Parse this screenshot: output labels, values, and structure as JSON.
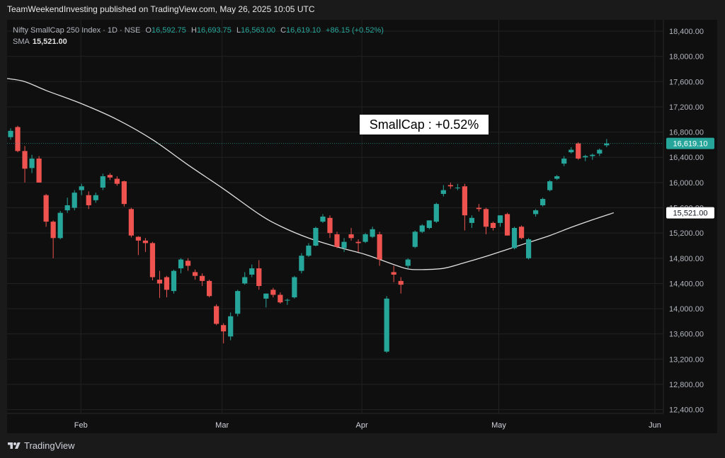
{
  "header": {
    "publisher": "TeamWeekendInvesting published on TradingView.com, May 26, 2025 10:05 UTC"
  },
  "legend": {
    "symbol": "Nifty SmallCap 250 Index · 1D · NSE",
    "o_label": "O",
    "o_value": "16,592.75",
    "h_label": "H",
    "h_value": "16,693.75",
    "l_label": "L",
    "l_value": "16,563.00",
    "c_label": "C",
    "c_value": "16,619.10",
    "change": "+86.15 (+0.52%)",
    "sma_label": "SMA",
    "sma_value": "15,521.00"
  },
  "annotation": {
    "text": "SmallCap : +0.52%"
  },
  "price_tags": {
    "last_price": "16,619.10",
    "sma_price": "15,521.00"
  },
  "footer": {
    "brand": "TradingView"
  },
  "colors": {
    "up": "#26a69a",
    "down": "#ef5350",
    "sma": "#e0e0e0",
    "background": "#0f0f0f",
    "grid": "#222222"
  },
  "chart_data": {
    "type": "candlestick",
    "y_ticks": [
      12400,
      12800,
      13200,
      13600,
      14000,
      14400,
      14800,
      15200,
      15600,
      16000,
      16400,
      16800,
      17200,
      17600,
      18000,
      18400
    ],
    "y_tick_labels": [
      "12,400.00",
      "12,800.00",
      "13,200.00",
      "13,600.00",
      "14,000.00",
      "14,400.00",
      "14,800.00",
      "15,200.00",
      "15,600.00",
      "16,000.00",
      "16,400.00",
      "16,800.00",
      "17,200.00",
      "17,600.00",
      "18,000.00",
      "18,400.00"
    ],
    "ylim": [
      12340,
      18580
    ],
    "x_ticks": [
      {
        "label": "Feb",
        "index": 9.9
      },
      {
        "label": "Mar",
        "index": 29.8
      },
      {
        "label": "Apr",
        "index": 49.5
      },
      {
        "label": "May",
        "index": 68.8
      },
      {
        "label": "Jun",
        "index": 90.8
      }
    ],
    "xlim": [
      -0.5,
      92
    ],
    "candles": [
      {
        "o": 16720,
        "h": 16860,
        "l": 16680,
        "c": 16820
      },
      {
        "o": 16880,
        "h": 16900,
        "l": 16480,
        "c": 16500
      },
      {
        "o": 16500,
        "h": 16580,
        "l": 16000,
        "c": 16220
      },
      {
        "o": 16230,
        "h": 16440,
        "l": 16150,
        "c": 16380
      },
      {
        "o": 16380,
        "h": 16420,
        "l": 16000,
        "c": 16000
      },
      {
        "o": 15800,
        "h": 15820,
        "l": 15300,
        "c": 15380
      },
      {
        "o": 15380,
        "h": 15400,
        "l": 14800,
        "c": 15120
      },
      {
        "o": 15120,
        "h": 15550,
        "l": 15100,
        "c": 15520
      },
      {
        "o": 15560,
        "h": 15760,
        "l": 15520,
        "c": 15640
      },
      {
        "o": 15600,
        "h": 15880,
        "l": 15560,
        "c": 15840
      },
      {
        "o": 15880,
        "h": 15980,
        "l": 15800,
        "c": 15940
      },
      {
        "o": 15800,
        "h": 15860,
        "l": 15580,
        "c": 15640
      },
      {
        "o": 15720,
        "h": 15840,
        "l": 15680,
        "c": 15800
      },
      {
        "o": 15920,
        "h": 16140,
        "l": 15880,
        "c": 16100
      },
      {
        "o": 16120,
        "h": 16150,
        "l": 16040,
        "c": 16080
      },
      {
        "o": 16060,
        "h": 16100,
        "l": 15950,
        "c": 15980
      },
      {
        "o": 16020,
        "h": 16030,
        "l": 15620,
        "c": 15660
      },
      {
        "o": 15580,
        "h": 15600,
        "l": 15130,
        "c": 15160
      },
      {
        "o": 15140,
        "h": 15150,
        "l": 14850,
        "c": 15080
      },
      {
        "o": 15080,
        "h": 15120,
        "l": 14900,
        "c": 15040
      },
      {
        "o": 15040,
        "h": 15060,
        "l": 14450,
        "c": 14500
      },
      {
        "o": 14460,
        "h": 14600,
        "l": 14170,
        "c": 14400
      },
      {
        "o": 14500,
        "h": 14520,
        "l": 14180,
        "c": 14300
      },
      {
        "o": 14280,
        "h": 14620,
        "l": 14240,
        "c": 14600
      },
      {
        "o": 14640,
        "h": 14800,
        "l": 14560,
        "c": 14780
      },
      {
        "o": 14760,
        "h": 14800,
        "l": 14600,
        "c": 14680
      },
      {
        "o": 14580,
        "h": 14620,
        "l": 14460,
        "c": 14520
      },
      {
        "o": 14520,
        "h": 14560,
        "l": 14360,
        "c": 14440
      },
      {
        "o": 14440,
        "h": 14460,
        "l": 14180,
        "c": 14200
      },
      {
        "o": 14040,
        "h": 14070,
        "l": 13740,
        "c": 13760
      },
      {
        "o": 13740,
        "h": 13770,
        "l": 13450,
        "c": 13640
      },
      {
        "o": 13560,
        "h": 13940,
        "l": 13500,
        "c": 13880
      },
      {
        "o": 13920,
        "h": 14300,
        "l": 13880,
        "c": 14280
      },
      {
        "o": 14400,
        "h": 14580,
        "l": 14380,
        "c": 14500
      },
      {
        "o": 14540,
        "h": 14700,
        "l": 14500,
        "c": 14640
      },
      {
        "o": 14640,
        "h": 14770,
        "l": 14300,
        "c": 14360
      },
      {
        "o": 14160,
        "h": 14240,
        "l": 14020,
        "c": 14240
      },
      {
        "o": 14300,
        "h": 14330,
        "l": 14180,
        "c": 14220
      },
      {
        "o": 14220,
        "h": 14260,
        "l": 14080,
        "c": 14100
      },
      {
        "o": 14140,
        "h": 14160,
        "l": 14060,
        "c": 14140
      },
      {
        "o": 14180,
        "h": 14520,
        "l": 14160,
        "c": 14500
      },
      {
        "o": 14600,
        "h": 14880,
        "l": 14560,
        "c": 14840
      },
      {
        "o": 14840,
        "h": 15040,
        "l": 14820,
        "c": 15000
      },
      {
        "o": 15000,
        "h": 15300,
        "l": 14990,
        "c": 15280
      },
      {
        "o": 15380,
        "h": 15500,
        "l": 15360,
        "c": 15460
      },
      {
        "o": 15440,
        "h": 15480,
        "l": 15120,
        "c": 15200
      },
      {
        "o": 15180,
        "h": 15220,
        "l": 14960,
        "c": 14980
      },
      {
        "o": 14960,
        "h": 15120,
        "l": 14900,
        "c": 15060
      },
      {
        "o": 15180,
        "h": 15280,
        "l": 15080,
        "c": 15120
      },
      {
        "o": 15060,
        "h": 15100,
        "l": 14900,
        "c": 15040
      },
      {
        "o": 15060,
        "h": 15200,
        "l": 15040,
        "c": 15180
      },
      {
        "o": 15140,
        "h": 15300,
        "l": 15120,
        "c": 15260
      },
      {
        "o": 15180,
        "h": 15220,
        "l": 14680,
        "c": 14780
      },
      {
        "o": 13320,
        "h": 14200,
        "l": 13300,
        "c": 14160
      },
      {
        "o": 14580,
        "h": 14680,
        "l": 14420,
        "c": 14540
      },
      {
        "o": 14440,
        "h": 14500,
        "l": 14240,
        "c": 14380
      },
      {
        "o": 14680,
        "h": 14800,
        "l": 14640,
        "c": 14780
      },
      {
        "o": 14980,
        "h": 15240,
        "l": 14960,
        "c": 15220
      },
      {
        "o": 15220,
        "h": 15340,
        "l": 15200,
        "c": 15320
      },
      {
        "o": 15280,
        "h": 15400,
        "l": 15260,
        "c": 15400
      },
      {
        "o": 15380,
        "h": 15680,
        "l": 15360,
        "c": 15660
      },
      {
        "o": 15820,
        "h": 15960,
        "l": 15780,
        "c": 15880
      },
      {
        "o": 15960,
        "h": 16000,
        "l": 15900,
        "c": 15940
      },
      {
        "o": 15920,
        "h": 15980,
        "l": 15880,
        "c": 15920
      },
      {
        "o": 15940,
        "h": 15980,
        "l": 15240,
        "c": 15480
      },
      {
        "o": 15360,
        "h": 15480,
        "l": 15280,
        "c": 15440
      },
      {
        "o": 15600,
        "h": 15660,
        "l": 15540,
        "c": 15580
      },
      {
        "o": 15580,
        "h": 15600,
        "l": 15180,
        "c": 15300
      },
      {
        "o": 15360,
        "h": 15380,
        "l": 15240,
        "c": 15280
      },
      {
        "o": 15360,
        "h": 15480,
        "l": 15300,
        "c": 15480
      },
      {
        "o": 15500,
        "h": 15520,
        "l": 15160,
        "c": 15160
      },
      {
        "o": 14960,
        "h": 15300,
        "l": 14940,
        "c": 15280
      },
      {
        "o": 15300,
        "h": 15320,
        "l": 15100,
        "c": 15120
      },
      {
        "o": 14800,
        "h": 15120,
        "l": 14780,
        "c": 15100
      },
      {
        "o": 15500,
        "h": 15580,
        "l": 15460,
        "c": 15560
      },
      {
        "o": 15640,
        "h": 15760,
        "l": 15620,
        "c": 15740
      },
      {
        "o": 15880,
        "h": 16040,
        "l": 15860,
        "c": 16020
      },
      {
        "o": 16060,
        "h": 16120,
        "l": 16040,
        "c": 16100
      },
      {
        "o": 16300,
        "h": 16420,
        "l": 16260,
        "c": 16380
      },
      {
        "o": 16480,
        "h": 16560,
        "l": 16460,
        "c": 16520
      },
      {
        "o": 16620,
        "h": 16640,
        "l": 16360,
        "c": 16380
      },
      {
        "o": 16400,
        "h": 16440,
        "l": 16340,
        "c": 16420
      },
      {
        "o": 16420,
        "h": 16460,
        "l": 16360,
        "c": 16440
      },
      {
        "o": 16460,
        "h": 16540,
        "l": 16420,
        "c": 16520
      },
      {
        "o": 16590,
        "h": 16690,
        "l": 16560,
        "c": 16620
      }
    ],
    "sma": [
      {
        "i": -0.5,
        "v": 17650
      },
      {
        "i": 2,
        "v": 17600
      },
      {
        "i": 5,
        "v": 17460
      },
      {
        "i": 10,
        "v": 17250
      },
      {
        "i": 15,
        "v": 17000
      },
      {
        "i": 20,
        "v": 16680
      },
      {
        "i": 25,
        "v": 16280
      },
      {
        "i": 30,
        "v": 15900
      },
      {
        "i": 35,
        "v": 15500
      },
      {
        "i": 38,
        "v": 15310
      },
      {
        "i": 42,
        "v": 15120
      },
      {
        "i": 46,
        "v": 14980
      },
      {
        "i": 50,
        "v": 14860
      },
      {
        "i": 54,
        "v": 14700
      },
      {
        "i": 56,
        "v": 14630
      },
      {
        "i": 58,
        "v": 14620
      },
      {
        "i": 61,
        "v": 14640
      },
      {
        "i": 64,
        "v": 14730
      },
      {
        "i": 67,
        "v": 14830
      },
      {
        "i": 70,
        "v": 14940
      },
      {
        "i": 73,
        "v": 15050
      },
      {
        "i": 76,
        "v": 15160
      },
      {
        "i": 79,
        "v": 15290
      },
      {
        "i": 82,
        "v": 15410
      },
      {
        "i": 85,
        "v": 15521
      }
    ]
  }
}
